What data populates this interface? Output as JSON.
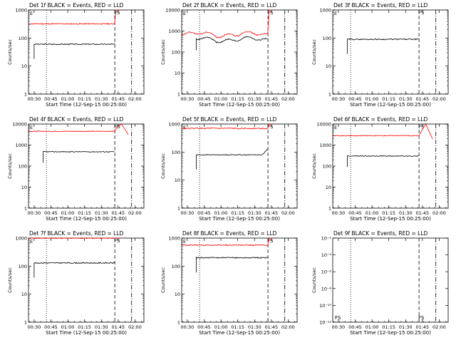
{
  "figure": {
    "x_axis_label": "Start Time (12-Sep-15 00:25:00)",
    "y_axis_label": "Counts/sec",
    "x_ticks": [
      "00:30",
      "00:45",
      "01:00",
      "01:15",
      "01:30",
      "01:45",
      "02:00"
    ],
    "x_tick_minutes": [
      30,
      45,
      60,
      75,
      90,
      105,
      120
    ],
    "x_range_minutes": [
      25,
      128
    ],
    "vline_dotted_minutes": [
      41
    ],
    "vline_dashed_minutes": [
      102
    ],
    "vline_dashdot_minutes": [
      117
    ],
    "mark_label": "FS",
    "mark_minute": 104,
    "colors": {
      "events": "#000000",
      "lld": "#ff0000",
      "frame": "#000000"
    }
  },
  "panels": [
    {
      "title": "Det 1f BLACK = Events, RED = LLD",
      "y_scale": "log",
      "ylim": [
        1,
        1000
      ],
      "y_tick_labels": [
        "1",
        "10",
        "100",
        "1000"
      ],
      "events": {
        "start": 30,
        "end": 102,
        "shape": "flat",
        "level": 60
      },
      "lld": {
        "start": 25,
        "end": 102,
        "shape": "flat",
        "level": 320,
        "spike": "high"
      }
    },
    {
      "title": "Det 2f BLACK = Events, RED = LLD",
      "y_scale": "log",
      "ylim": [
        1,
        10000
      ],
      "y_tick_labels": [
        "1",
        "10",
        "100",
        "1000",
        "10000"
      ],
      "events": {
        "start": 38,
        "end": 102,
        "shape": "bumpy",
        "level": 400
      },
      "lld": {
        "start": 25,
        "end": 102,
        "shape": "bumpy",
        "level": 700,
        "spike": "high"
      }
    },
    {
      "title": "Det 3f BLACK = Events, RED = LLD",
      "y_scale": "log",
      "ylim": [
        1,
        1000
      ],
      "y_tick_labels": [
        "1",
        "10",
        "100",
        "1000"
      ],
      "events": {
        "start": 38,
        "end": 102,
        "shape": "flat",
        "level": 90
      },
      "lld": null
    },
    {
      "title": "Det 4f BLACK = Events, RED = LLD",
      "y_scale": "log",
      "ylim": [
        1,
        10000
      ],
      "y_tick_labels": [
        "1",
        "10",
        "100",
        "1000",
        "10000"
      ],
      "events": {
        "start": 38,
        "end": 102,
        "shape": "flat",
        "level": 480
      },
      "lld": {
        "start": 25,
        "end": 102,
        "shape": "flat",
        "level": 4500,
        "spike": "dip"
      }
    },
    {
      "title": "Det 5f BLACK = Events, RED = LLD",
      "y_scale": "log",
      "ylim": [
        1,
        1000
      ],
      "y_tick_labels": [
        "1",
        "10",
        "100",
        "1000"
      ],
      "events": {
        "start": 38,
        "end": 102,
        "shape": "rise",
        "level": 80
      },
      "lld": {
        "start": 25,
        "end": 102,
        "shape": "flat",
        "level": 700,
        "spike": "high"
      }
    },
    {
      "title": "Det 6f BLACK = Events, RED = LLD",
      "y_scale": "log",
      "ylim": [
        1,
        10000
      ],
      "y_tick_labels": [
        "1",
        "10",
        "100",
        "1000",
        "10000"
      ],
      "events": {
        "start": 38,
        "end": 102,
        "shape": "flat",
        "level": 300
      },
      "lld": {
        "start": 25,
        "end": 102,
        "shape": "flat",
        "level": 2800,
        "spike": "dip"
      }
    },
    {
      "title": "Det 7f BLACK = Events, RED = LLD",
      "y_scale": "log",
      "ylim": [
        1,
        1000
      ],
      "y_tick_labels": [
        "1",
        "10",
        "100",
        "1000"
      ],
      "events": {
        "start": 30,
        "end": 102,
        "shape": "flat",
        "level": 130
      },
      "lld": {
        "start": 25,
        "end": 102,
        "shape": "flat",
        "level": 1000,
        "spike": "high"
      }
    },
    {
      "title": "Det 8f BLACK = Events, RED = LLD",
      "y_scale": "log",
      "ylim": [
        1,
        1000
      ],
      "y_tick_labels": [
        "1",
        "10",
        "100",
        "1000"
      ],
      "events": {
        "start": 38,
        "end": 102,
        "shape": "flat",
        "level": 200
      },
      "lld": {
        "start": 25,
        "end": 102,
        "shape": "flat",
        "level": 560,
        "spike": "high"
      }
    },
    {
      "title": "Det 9f BLACK = Events, RED = LLD",
      "y_scale": "log",
      "ylim": [
        1e-12,
        0.01
      ],
      "y_tick_labels": [
        "10⁻¹²",
        "10⁻¹⁰",
        "10⁻⁸",
        "10⁻⁶",
        "10⁻⁴",
        "10⁻²"
      ],
      "y_tick_values": [
        -12,
        -10,
        -8,
        -6,
        -4,
        -2
      ],
      "events": null,
      "lld": null,
      "extra_mark_minute": 27
    }
  ],
  "chart_data": [
    {
      "type": "line",
      "title": "Det 1f BLACK = Events, RED = LLD",
      "xlabel": "Start Time (12-Sep-15 00:25:00)",
      "ylabel": "Counts/sec",
      "ylim": [
        1,
        1000
      ],
      "y_scale": "log",
      "series": [
        {
          "name": "Events",
          "color": "#000000",
          "approx_level": 60
        },
        {
          "name": "LLD",
          "color": "#ff0000",
          "approx_level": 320
        }
      ]
    },
    {
      "type": "line",
      "title": "Det 2f BLACK = Events, RED = LLD",
      "xlabel": "Start Time (12-Sep-15 00:25:00)",
      "ylabel": "Counts/sec",
      "ylim": [
        1,
        10000
      ],
      "y_scale": "log",
      "series": [
        {
          "name": "Events",
          "color": "#000000",
          "approx_level": 400
        },
        {
          "name": "LLD",
          "color": "#ff0000",
          "approx_level": 700
        }
      ]
    },
    {
      "type": "line",
      "title": "Det 3f BLACK = Events, RED = LLD",
      "xlabel": "Start Time (12-Sep-15 00:25:00)",
      "ylabel": "Counts/sec",
      "ylim": [
        1,
        1000
      ],
      "y_scale": "log",
      "series": [
        {
          "name": "Events",
          "color": "#000000",
          "approx_level": 90
        }
      ]
    },
    {
      "type": "line",
      "title": "Det 4f BLACK = Events, RED = LLD",
      "xlabel": "Start Time (12-Sep-15 00:25:00)",
      "ylabel": "Counts/sec",
      "ylim": [
        1,
        10000
      ],
      "y_scale": "log",
      "series": [
        {
          "name": "Events",
          "color": "#000000",
          "approx_level": 480
        },
        {
          "name": "LLD",
          "color": "#ff0000",
          "approx_level": 4500
        }
      ]
    },
    {
      "type": "line",
      "title": "Det 5f BLACK = Events, RED = LLD",
      "xlabel": "Start Time (12-Sep-15 00:25:00)",
      "ylabel": "Counts/sec",
      "ylim": [
        1,
        1000
      ],
      "y_scale": "log",
      "series": [
        {
          "name": "Events",
          "color": "#000000",
          "approx_level": 80
        },
        {
          "name": "LLD",
          "color": "#ff0000",
          "approx_level": 700
        }
      ]
    },
    {
      "type": "line",
      "title": "Det 6f BLACK = Events, RED = LLD",
      "xlabel": "Start Time (12-Sep-15 00:25:00)",
      "ylabel": "Counts/sec",
      "ylim": [
        1,
        10000
      ],
      "y_scale": "log",
      "series": [
        {
          "name": "Events",
          "color": "#000000",
          "approx_level": 300
        },
        {
          "name": "LLD",
          "color": "#ff0000",
          "approx_level": 2800
        }
      ]
    },
    {
      "type": "line",
      "title": "Det 7f BLACK = Events, RED = LLD",
      "xlabel": "Start Time (12-Sep-15 00:25:00)",
      "ylabel": "Counts/sec",
      "ylim": [
        1,
        1000
      ],
      "y_scale": "log",
      "series": [
        {
          "name": "Events",
          "color": "#000000",
          "approx_level": 130
        },
        {
          "name": "LLD",
          "color": "#ff0000",
          "approx_level": 1000
        }
      ]
    },
    {
      "type": "line",
      "title": "Det 8f BLACK = Events, RED = LLD",
      "xlabel": "Start Time (12-Sep-15 00:25:00)",
      "ylabel": "Counts/sec",
      "ylim": [
        1,
        1000
      ],
      "y_scale": "log",
      "series": [
        {
          "name": "Events",
          "color": "#000000",
          "approx_level": 200
        },
        {
          "name": "LLD",
          "color": "#ff0000",
          "approx_level": 560
        }
      ]
    },
    {
      "type": "line",
      "title": "Det 9f BLACK = Events, RED = LLD",
      "xlabel": "Start Time (12-Sep-15 00:25:00)",
      "ylabel": "Counts/sec",
      "ylim": [
        1e-12,
        0.01
      ],
      "y_scale": "log",
      "series": []
    }
  ]
}
